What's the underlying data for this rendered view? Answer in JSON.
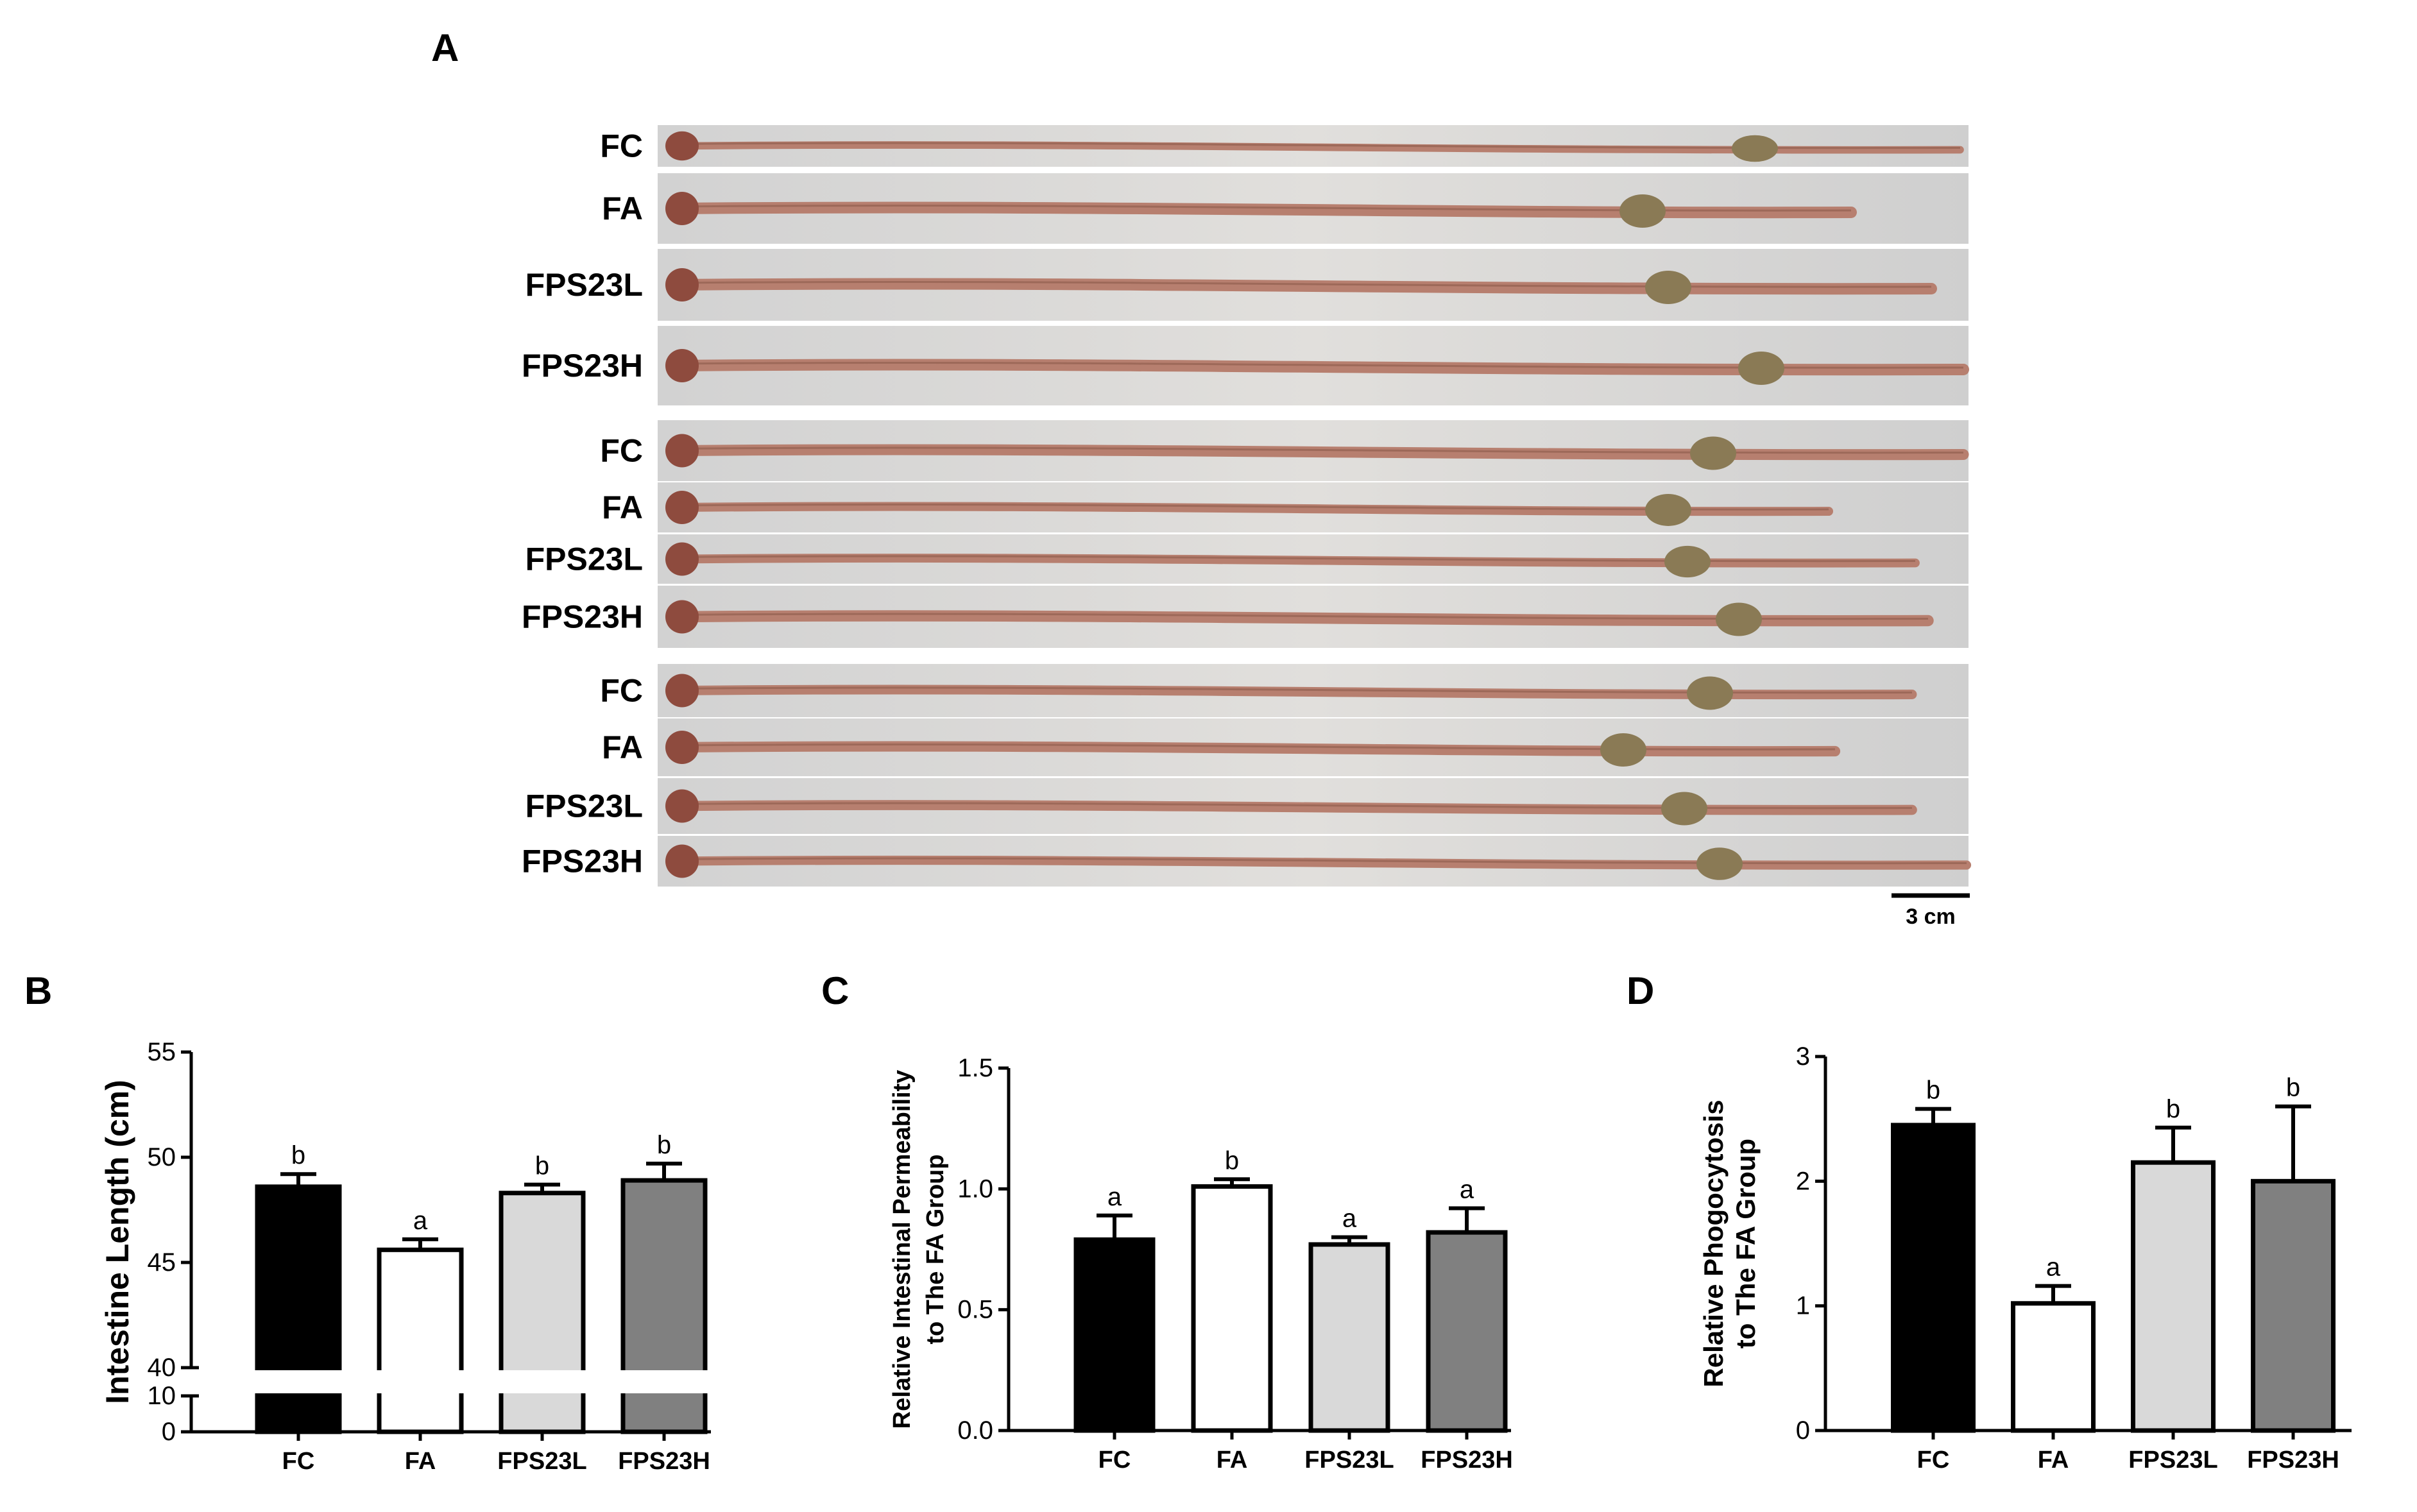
{
  "panels": {
    "A": {
      "letter": "A",
      "strip_labels": [
        "FC",
        "FA",
        "FPS23L",
        "FPS23H",
        "FC",
        "FA",
        "FPS23L",
        "FPS23H",
        "FC",
        "FA",
        "FPS23L",
        "FPS23H"
      ],
      "scale_bar": "3 cm"
    },
    "B": {
      "letter": "B"
    },
    "C": {
      "letter": "C"
    },
    "D": {
      "letter": "D"
    }
  },
  "chart_data": [
    {
      "panel": "B",
      "type": "bar",
      "categories": [
        "FC",
        "FA",
        "FPS23L",
        "FPS23H"
      ],
      "series": [
        {
          "values": [
            48.6,
            45.6,
            48.3,
            48.9
          ],
          "errors": [
            0.6,
            0.5,
            0.4,
            0.8
          ]
        }
      ],
      "significance": [
        "b",
        "a",
        "b",
        "b"
      ],
      "bar_fills": [
        "#000000",
        "#ffffff",
        "#d9d9d9",
        "#808080"
      ],
      "ylabel": "Intestine Length (cm)",
      "ylim": [
        0,
        55
      ],
      "axis_break": [
        10,
        40
      ],
      "yticks": [
        "0",
        "10",
        "40",
        "45",
        "50",
        "55"
      ]
    },
    {
      "panel": "C",
      "type": "bar",
      "categories": [
        "FC",
        "FA",
        "FPS23L",
        "FPS23H"
      ],
      "series": [
        {
          "values": [
            0.79,
            1.01,
            0.77,
            0.82
          ],
          "errors": [
            0.1,
            0.03,
            0.03,
            0.1
          ]
        }
      ],
      "significance": [
        "a",
        "b",
        "a",
        "a"
      ],
      "bar_fills": [
        "#000000",
        "#ffffff",
        "#d9d9d9",
        "#808080"
      ],
      "ylabel_lines": [
        "Relative Intestinal Permeability",
        "to The FA Group"
      ],
      "ylim": [
        0,
        1.5
      ],
      "yticks": [
        "0.0",
        "0.5",
        "1.0",
        "1.5"
      ]
    },
    {
      "panel": "D",
      "type": "bar",
      "categories": [
        "FC",
        "FA",
        "FPS23L",
        "FPS23H"
      ],
      "series": [
        {
          "values": [
            2.45,
            1.02,
            2.15,
            2.0
          ],
          "errors": [
            0.13,
            0.14,
            0.28,
            0.6
          ]
        }
      ],
      "significance": [
        "b",
        "a",
        "b",
        "b"
      ],
      "bar_fills": [
        "#000000",
        "#ffffff",
        "#d9d9d9",
        "#808080"
      ],
      "ylabel_lines": [
        "Relative Phogocytosis",
        "to The FA Group"
      ],
      "ylim": [
        0,
        3
      ],
      "yticks": [
        "0",
        "1",
        "2",
        "3"
      ]
    }
  ]
}
